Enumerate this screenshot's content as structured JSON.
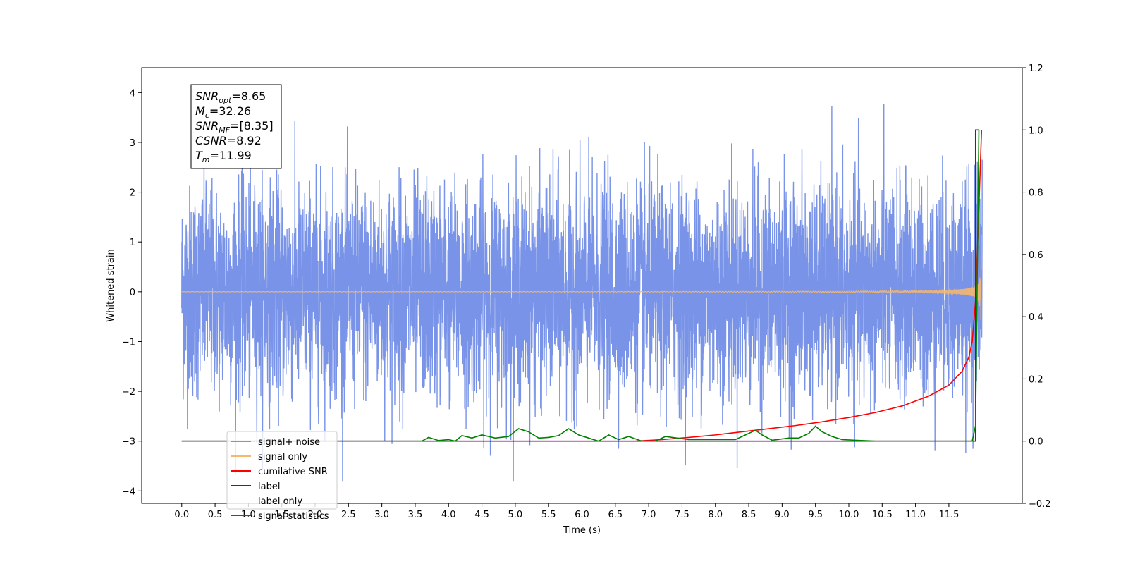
{
  "chart_data": {
    "type": "line",
    "xlabel": "Time (s)",
    "ylabel": "Whitened strain",
    "xlim": [
      -0.6,
      12.6
    ],
    "ylim": [
      -4.25,
      4.5
    ],
    "ylim_right": [
      -0.2,
      1.2
    ],
    "x_ticks": [
      "0.0",
      "0.5",
      "1.0",
      "1.5",
      "2.0",
      "2.5",
      "3.0",
      "3.5",
      "4.0",
      "4.5",
      "5.0",
      "5.5",
      "6.0",
      "6.5",
      "7.0",
      "7.5",
      "8.0",
      "8.5",
      "9.0",
      "9.5",
      "10.0",
      "10.5",
      "11.0",
      "11.5"
    ],
    "y_ticks": [
      "4",
      "3",
      "2",
      "1",
      "0",
      "−1",
      "−2",
      "−3",
      "−4"
    ],
    "y_ticks_right": [
      "1.2",
      "1.0",
      "0.8",
      "0.6",
      "0.4",
      "0.2",
      "0.0",
      "−0.2"
    ],
    "grid": false,
    "legend_position": "lower-left",
    "series": [
      {
        "name": "signal+ noise",
        "color": "#7893e7",
        "axis": "left",
        "kind": "noise",
        "x_range": [
          0.0,
          12.0
        ],
        "amplitude_std": 1.0
      },
      {
        "name": "signal only",
        "color": "#f5b870",
        "axis": "left",
        "kind": "chirp",
        "coalescence_time": 11.99,
        "peak_amplitude": 3.2
      },
      {
        "name": "cumilative SNR",
        "color": "#ff0000",
        "axis": "right",
        "x": [
          6.8,
          7.2,
          7.6,
          8.0,
          8.4,
          8.8,
          9.2,
          9.6,
          10.0,
          10.4,
          10.8,
          11.2,
          11.5,
          11.7,
          11.8,
          11.85,
          11.9,
          11.95,
          11.99
        ],
        "values": [
          0.0,
          0.005,
          0.012,
          0.02,
          0.03,
          0.04,
          0.05,
          0.062,
          0.076,
          0.092,
          0.113,
          0.145,
          0.18,
          0.225,
          0.27,
          0.32,
          0.45,
          0.75,
          1.0
        ]
      },
      {
        "name": "label",
        "color": "#800080",
        "axis": "right",
        "x": [
          0.0,
          11.9,
          11.9,
          11.95
        ],
        "values": [
          0.0,
          0.0,
          1.0,
          1.0
        ]
      },
      {
        "name": "label only",
        "color": "#808080",
        "axis": "right",
        "hidden": true,
        "x": [],
        "values": []
      },
      {
        "name": "signal statistics",
        "color": "#008000",
        "axis": "right",
        "x": [
          0.0,
          3.6,
          3.7,
          3.85,
          4.0,
          4.1,
          4.2,
          4.35,
          4.5,
          4.7,
          4.9,
          5.05,
          5.2,
          5.35,
          5.5,
          5.65,
          5.8,
          5.95,
          6.1,
          6.25,
          6.4,
          6.55,
          6.7,
          6.9,
          7.1,
          7.25,
          7.6,
          8.0,
          8.3,
          8.45,
          8.6,
          8.7,
          8.85,
          9.1,
          9.25,
          9.4,
          9.5,
          9.6,
          9.75,
          9.9,
          10.1,
          10.4,
          11.85,
          11.9,
          11.95
        ],
        "values": [
          0.0,
          0.0,
          0.012,
          0.002,
          0.005,
          0.0,
          0.018,
          0.01,
          0.02,
          0.01,
          0.015,
          0.04,
          0.03,
          0.01,
          0.012,
          0.018,
          0.04,
          0.02,
          0.01,
          0.0,
          0.02,
          0.005,
          0.015,
          0.0,
          0.0,
          0.015,
          0.005,
          0.005,
          0.005,
          0.02,
          0.035,
          0.02,
          0.003,
          0.01,
          0.01,
          0.025,
          0.048,
          0.03,
          0.015,
          0.005,
          0.003,
          0.0,
          0.0,
          0.05,
          1.0
        ]
      }
    ],
    "annotation": [
      {
        "base": "SNR",
        "sub": "opt",
        "value": "=8.65"
      },
      {
        "base": "M",
        "sub": "c",
        "value": "=32.26"
      },
      {
        "base": "SNR",
        "sub": "MF",
        "value": "=[8.35]"
      },
      {
        "base": "CSNR",
        "sub": "",
        "value": "=8.92"
      },
      {
        "base": "T",
        "sub": "m",
        "value": "=11.99"
      }
    ]
  }
}
